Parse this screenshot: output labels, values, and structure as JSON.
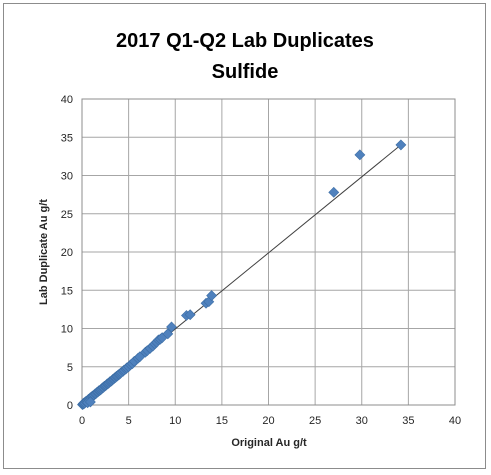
{
  "chart_data": {
    "type": "scatter",
    "title": [
      "2017 Q1-Q2 Lab Duplicates",
      "Sulfide"
    ],
    "xlabel": "Original Au g/t",
    "ylabel": "Lab Duplicate Au g/t",
    "xlim": [
      0,
      40
    ],
    "ylim": [
      0,
      40
    ],
    "xticks": [
      0,
      5,
      10,
      15,
      20,
      25,
      30,
      35,
      40
    ],
    "yticks": [
      0,
      5,
      10,
      15,
      20,
      25,
      30,
      35,
      40
    ],
    "grid": true,
    "legend": "none",
    "marker_color": "#4F81BD",
    "trendline_color": "#404040",
    "trendline": {
      "x": [
        0,
        34.2
      ],
      "y": [
        0,
        34.0
      ]
    },
    "series": [
      {
        "x": [
          0.05,
          0.1,
          0.15,
          0.2,
          0.25,
          0.3,
          0.4,
          0.5,
          0.6,
          0.7,
          0.8,
          0.9,
          1.0,
          1.1,
          1.2,
          1.3,
          1.4,
          1.5,
          1.6,
          1.7,
          1.8,
          1.9,
          2.0,
          2.1,
          2.2,
          2.3,
          2.4,
          2.5,
          2.6,
          2.7,
          2.8,
          2.9,
          3.0,
          3.1,
          3.2,
          3.3,
          3.4,
          3.5,
          3.6,
          3.7,
          3.8,
          3.9,
          4.0,
          4.1,
          4.2,
          4.4,
          4.5,
          4.7,
          4.8,
          5.0,
          5.2,
          5.4,
          5.6,
          6.0,
          6.2,
          6.8,
          7.0,
          7.3,
          7.6,
          7.8,
          8.0,
          8.2,
          8.4,
          8.6,
          9.2,
          9.6,
          11.2,
          11.6,
          13.3,
          13.6,
          13.9,
          27.0,
          29.8,
          34.2,
          0.6,
          0.9
        ],
        "y": [
          0.05,
          0.1,
          0.2,
          0.15,
          0.3,
          0.25,
          0.45,
          0.5,
          0.55,
          0.75,
          0.8,
          0.95,
          1.0,
          1.15,
          1.2,
          1.3,
          1.45,
          1.5,
          1.65,
          1.7,
          1.85,
          1.9,
          2.0,
          2.1,
          2.25,
          2.3,
          2.45,
          2.5,
          2.6,
          2.75,
          2.8,
          2.9,
          3.05,
          3.1,
          3.2,
          3.35,
          3.4,
          3.55,
          3.6,
          3.75,
          3.8,
          3.95,
          4.0,
          4.1,
          4.25,
          4.4,
          4.55,
          4.7,
          4.85,
          5.0,
          5.25,
          5.4,
          5.7,
          6.1,
          6.3,
          6.9,
          7.1,
          7.4,
          7.7,
          8.0,
          8.2,
          8.5,
          8.6,
          8.8,
          9.3,
          10.2,
          11.7,
          11.8,
          13.3,
          13.5,
          14.3,
          27.8,
          32.7,
          34.0,
          0.3,
          0.4
        ]
      }
    ]
  }
}
